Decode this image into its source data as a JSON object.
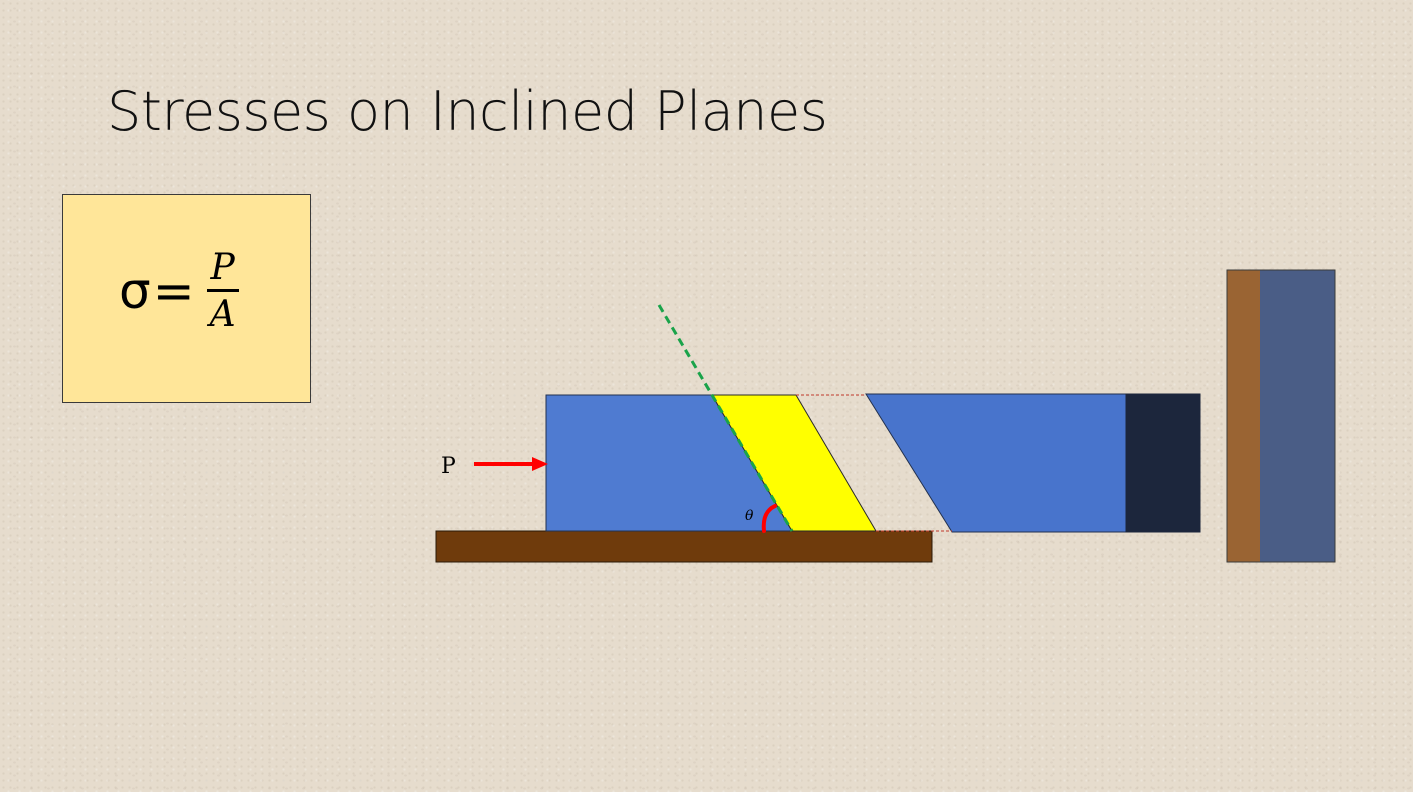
{
  "slide": {
    "title": "Stresses on Inclined Planes"
  },
  "formula": {
    "lhs": "σ",
    "equals": "=",
    "numerator": "P",
    "denominator": "A"
  },
  "diagram": {
    "load_label": "P",
    "angle_label": "θ"
  },
  "colors": {
    "slide_background": "#e6dccd",
    "formula_box": "#ffe699",
    "bar_blue": "#4f7bd1",
    "bar_blue_right": "#4874cc",
    "end_cap": "#1c263c",
    "inclined_section": "#ffff00",
    "floor": "#6f3b0c",
    "wall_wood": "#9a6433",
    "wall_slate": "#4a5d86",
    "load_arrow": "#ff0000",
    "normal_line": "#1aa34a"
  }
}
